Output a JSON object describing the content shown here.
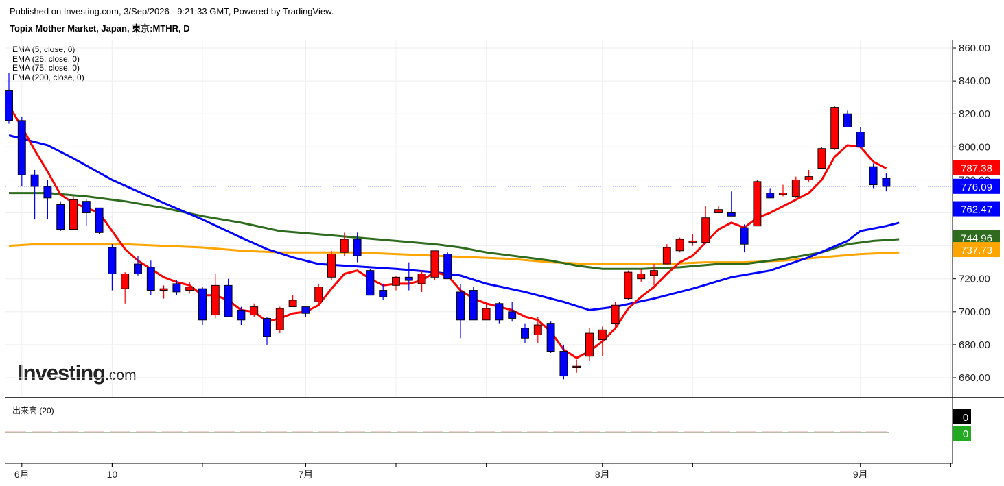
{
  "header": {
    "published": "Published on Investing.com, 3/Sep/2026 - 9:21:33 GMT, Powered by TradingView.",
    "symbol": "Topix Mother Market, Japan, 東京:MTHR, D"
  },
  "legend": {
    "items": [
      "EMA (5, close, 0)",
      "EMA (25, close, 0)",
      "EMA (75, close, 0)",
      "EMA (200, close, 0)"
    ]
  },
  "logo": {
    "main": "Investing",
    "suffix": ".com"
  },
  "colors": {
    "up": "#ff0000",
    "down": "#0000ff",
    "ema5": "#ff0000",
    "ema25": "#0000ff",
    "ema75": "#2e6b1e",
    "ema200": "#ffa500",
    "last_price_line": "#0000ff"
  },
  "chart_data": {
    "type": "candlestick",
    "y_axis": {
      "min": 650,
      "max": 865,
      "ticks": [
        "660.00",
        "680.00",
        "700.00",
        "720.00",
        "740.00",
        "760.00",
        "780.00",
        "800.00",
        "820.00",
        "840.00",
        "860.00"
      ]
    },
    "x_labels": [
      {
        "label": "6月",
        "index": 1
      },
      {
        "label": "10",
        "index": 8
      },
      {
        "label": "7月",
        "index": 23
      },
      {
        "label": "8月",
        "index": 46
      },
      {
        "label": "9月",
        "index": 66
      }
    ],
    "x_ticks": [
      8,
      15,
      23,
      30,
      37,
      46,
      53,
      66,
      73
    ],
    "candles": [
      [
        834,
        816,
        845,
        814
      ],
      [
        816,
        783,
        818,
        776
      ],
      [
        783,
        776,
        786,
        756
      ],
      [
        776,
        769,
        780,
        756
      ],
      [
        765,
        750,
        767,
        749
      ],
      [
        750,
        768,
        770,
        750
      ],
      [
        767,
        760,
        768,
        752
      ],
      [
        763,
        748,
        763,
        747
      ],
      [
        739,
        723,
        741,
        713
      ],
      [
        714,
        723,
        724,
        705
      ],
      [
        729,
        723,
        734,
        722
      ],
      [
        727,
        713,
        731,
        710
      ],
      [
        713,
        714,
        716,
        708
      ],
      [
        717,
        712,
        719,
        710
      ],
      [
        713,
        715,
        718,
        711
      ],
      [
        714,
        695,
        715,
        692
      ],
      [
        698,
        716,
        723,
        696
      ],
      [
        716,
        697,
        720,
        697
      ],
      [
        701,
        695,
        703,
        692
      ],
      [
        698,
        703,
        705,
        697
      ],
      [
        696,
        685,
        697,
        680
      ],
      [
        689,
        702,
        703,
        687
      ],
      [
        703,
        707,
        710,
        703
      ],
      [
        703,
        699,
        703,
        697
      ],
      [
        706,
        715,
        717,
        704
      ],
      [
        721,
        735,
        737,
        719
      ],
      [
        736,
        744,
        748,
        734
      ],
      [
        744,
        734,
        748,
        730
      ],
      [
        725,
        710,
        726,
        710
      ],
      [
        713,
        709,
        717,
        707
      ],
      [
        716,
        721,
        722,
        713
      ],
      [
        721,
        719,
        730,
        713
      ],
      [
        717,
        723,
        725,
        712
      ],
      [
        721,
        737,
        737,
        719
      ],
      [
        735,
        720,
        736,
        720
      ],
      [
        712,
        695,
        717,
        684
      ],
      [
        713,
        695,
        715,
        695
      ],
      [
        695,
        702,
        705,
        695
      ],
      [
        705,
        695,
        706,
        693
      ],
      [
        700,
        696,
        706,
        694
      ],
      [
        690,
        684,
        693,
        681
      ],
      [
        686,
        692,
        697,
        681
      ],
      [
        693,
        676,
        694,
        675
      ],
      [
        676,
        661,
        680,
        659
      ],
      [
        666,
        667,
        671,
        663
      ],
      [
        673,
        687,
        690,
        670
      ],
      [
        683,
        689,
        691,
        673
      ],
      [
        693,
        704,
        706,
        691
      ],
      [
        708,
        724,
        725,
        707
      ],
      [
        720,
        723,
        726,
        718
      ],
      [
        722,
        725,
        729,
        716
      ],
      [
        729,
        739,
        741,
        729
      ],
      [
        737,
        744,
        745,
        736
      ],
      [
        743,
        743,
        747,
        740
      ],
      [
        742,
        757,
        764,
        742
      ],
      [
        760,
        762,
        764,
        760
      ],
      [
        760,
        758,
        773,
        758
      ],
      [
        751,
        741,
        753,
        736
      ],
      [
        752,
        779,
        780,
        752
      ],
      [
        772,
        769,
        775,
        769
      ],
      [
        771,
        772,
        777,
        770
      ],
      [
        770,
        780,
        782,
        769
      ],
      [
        780,
        782,
        786,
        779
      ],
      [
        787,
        799,
        800,
        787
      ],
      [
        799,
        824,
        825,
        798
      ],
      [
        820,
        812,
        822,
        812
      ],
      [
        809,
        800,
        812,
        799
      ],
      [
        788,
        777,
        790,
        775
      ],
      [
        781,
        776,
        784,
        773
      ]
    ],
    "ema5": [
      825,
      812,
      798,
      785,
      771,
      766,
      763,
      760,
      749,
      738,
      731,
      726,
      721,
      718,
      716,
      710,
      710,
      707,
      701,
      700,
      694,
      696,
      699,
      700,
      704,
      714,
      723,
      725,
      720,
      716,
      717,
      717,
      719,
      724,
      722,
      713,
      708,
      705,
      703,
      701,
      697,
      695,
      688,
      677,
      672,
      676,
      682,
      690,
      702,
      709,
      715,
      723,
      730,
      734,
      742,
      750,
      754,
      751,
      757,
      760,
      764,
      768,
      772,
      780,
      794,
      801,
      800,
      791,
      787
    ]
  },
  "ema_overlay": {
    "ema25": [
      [
        0,
        807
      ],
      [
        3,
        801
      ],
      [
        5,
        793
      ],
      [
        8,
        780
      ],
      [
        12,
        766
      ],
      [
        15,
        756
      ],
      [
        18,
        745
      ],
      [
        20,
        738
      ],
      [
        22,
        733
      ],
      [
        24,
        729
      ],
      [
        26,
        728
      ],
      [
        30,
        726
      ],
      [
        33,
        724
      ],
      [
        35,
        722
      ],
      [
        37,
        717
      ],
      [
        40,
        712
      ],
      [
        43,
        706
      ],
      [
        45,
        701
      ],
      [
        47,
        703
      ],
      [
        50,
        708
      ],
      [
        53,
        714
      ],
      [
        56,
        721
      ],
      [
        59,
        725
      ],
      [
        62,
        733
      ],
      [
        65,
        743
      ],
      [
        66,
        749
      ],
      [
        68,
        752
      ],
      [
        69,
        754
      ]
    ],
    "ema75": [
      [
        0,
        772
      ],
      [
        3,
        772
      ],
      [
        6,
        770
      ],
      [
        9,
        767
      ],
      [
        12,
        763
      ],
      [
        15,
        758
      ],
      [
        18,
        754
      ],
      [
        21,
        749
      ],
      [
        24,
        747
      ],
      [
        27,
        745
      ],
      [
        30,
        743
      ],
      [
        33,
        741
      ],
      [
        35,
        739
      ],
      [
        37,
        736
      ],
      [
        40,
        733
      ],
      [
        42,
        731
      ],
      [
        44,
        728
      ],
      [
        46,
        726
      ],
      [
        49,
        726
      ],
      [
        52,
        727
      ],
      [
        55,
        729
      ],
      [
        57,
        729
      ],
      [
        60,
        732
      ],
      [
        63,
        736
      ],
      [
        65,
        741
      ],
      [
        67,
        743
      ],
      [
        69,
        744
      ]
    ],
    "ema200": [
      [
        0,
        740
      ],
      [
        2,
        741
      ],
      [
        5,
        741
      ],
      [
        9,
        741
      ],
      [
        12,
        740
      ],
      [
        15,
        739
      ],
      [
        18,
        737
      ],
      [
        21,
        736
      ],
      [
        24,
        736
      ],
      [
        27,
        736
      ],
      [
        30,
        735
      ],
      [
        33,
        734
      ],
      [
        36,
        733
      ],
      [
        39,
        732
      ],
      [
        42,
        730
      ],
      [
        45,
        729
      ],
      [
        48,
        729
      ],
      [
        51,
        729
      ],
      [
        54,
        730
      ],
      [
        57,
        730
      ],
      [
        60,
        731
      ],
      [
        63,
        733
      ],
      [
        66,
        735
      ],
      [
        69,
        736
      ]
    ]
  },
  "price_labels": [
    {
      "value": "787.38",
      "color": "#ff0000",
      "y": 787.38
    },
    {
      "value": "776.09",
      "color": "#0000ff",
      "y": 776.09
    },
    {
      "value": "762.47",
      "color": "#0000ff",
      "y": 762.47
    },
    {
      "value": "744.96",
      "color": "#2e6b1e",
      "y": 744.96
    },
    {
      "value": "737.73",
      "color": "#ffa500",
      "y": 737.73
    }
  ],
  "last_price": 776.09,
  "volume": {
    "label": "出来高 (20)",
    "labels": [
      {
        "value": "0",
        "color": "#000000"
      },
      {
        "value": "0",
        "color": "#22aa22"
      }
    ]
  }
}
